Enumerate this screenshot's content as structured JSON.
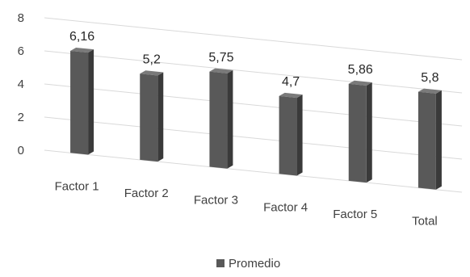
{
  "chart_data": {
    "type": "bar",
    "categories": [
      "Factor 1",
      "Factor 2",
      "Factor 3",
      "Factor 4",
      "Factor 5",
      "Total"
    ],
    "series": [
      {
        "name": "Promedio",
        "values": [
          6.16,
          5.2,
          5.75,
          4.7,
          5.86,
          5.8
        ],
        "value_labels": [
          "6,16",
          "5,2",
          "5,75",
          "4,7",
          "5,86",
          "5,8"
        ]
      }
    ],
    "y_ticks": [
      "0",
      "2",
      "4",
      "6",
      "8"
    ],
    "ylim": [
      0,
      8
    ],
    "grid": true,
    "legend_position": "bottom-center",
    "colors": {
      "bar_front": "#595959",
      "bar_side": "#3a3a3a",
      "bar_top": "#7a7a7a",
      "grid": "#d9d9d9",
      "text": "#404040",
      "label_text": "#262626"
    }
  }
}
